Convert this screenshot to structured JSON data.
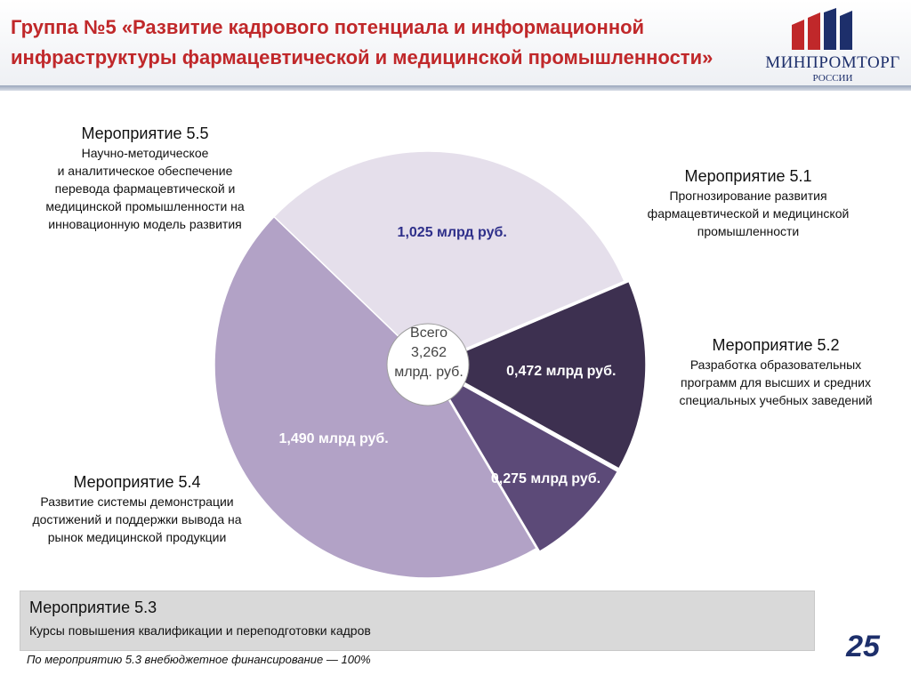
{
  "header": {
    "title_line1": "Группа №5 «Развитие кадрового потенциала и информационной",
    "title_line2": "инфраструктуры фармацевтической и медицинской промышленности»",
    "logo_word": "МИНПРОМТОРГ",
    "logo_sub": "РОССИИ",
    "title_color": "#c0282a"
  },
  "chart_data": {
    "type": "pie",
    "center_label": [
      "Всего",
      "3,262",
      "млрд. руб."
    ],
    "slices": [
      {
        "id": "5.1",
        "value": 0.472,
        "label": "0,472 млрд руб.",
        "color": "#3d3050",
        "label_color": "#ffffff"
      },
      {
        "id": "5.2",
        "value": 0.275,
        "label": "0,275 млрд руб.",
        "color": "#5c4a78",
        "label_color": "#ffffff"
      },
      {
        "id": "5.4",
        "value": 1.49,
        "label": "1,490 млрд руб.",
        "color": "#b2a2c6",
        "label_color": "#ffffff"
      },
      {
        "id": "5.5",
        "value": 1.025,
        "label": "1,025 млрд руб.",
        "color": "#e5dfeb",
        "label_color": "#2e2f8a"
      }
    ]
  },
  "events": {
    "e51": {
      "head": "Мероприятие 5.1",
      "lines": [
        "Прогнозирование развития",
        "фармацевтической и медицинской",
        "промышленности"
      ]
    },
    "e52": {
      "head": "Мероприятие 5.2",
      "lines": [
        "Разработка  образовательных",
        "программ для высших и средних",
        "специальных учебных заведений"
      ]
    },
    "e54": {
      "head": "Мероприятие 5.4",
      "lines": [
        "Развитие системы демонстрации",
        "достижений и поддержки вывода на",
        "рынок медицинской продукции"
      ]
    },
    "e55": {
      "head": "Мероприятие 5.5",
      "lines": [
        "Научно-методическое",
        "и аналитическое обеспечение",
        "перевода фармацевтической и",
        "медицинской промышленности на",
        "инновационную модель развития"
      ]
    },
    "e53": {
      "head": "Мероприятие 5.3",
      "desc": "Курсы повышения квалификации и переподготовки кадров"
    }
  },
  "footer": {
    "note": "По мероприятию 5.3 внебюджетное финансирование — 100%",
    "page_number": "25"
  }
}
